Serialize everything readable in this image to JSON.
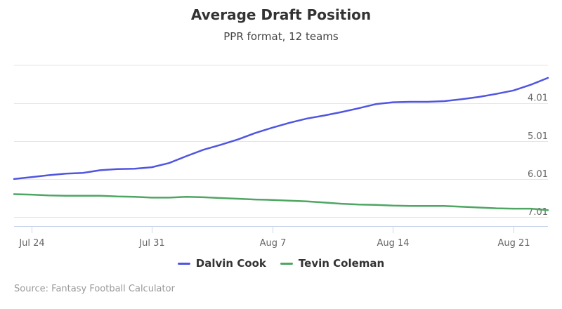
{
  "colors": {
    "dalvin_cook": "#5055e0",
    "tevin_coleman": "#4ea662",
    "grid": "#e6e6e6",
    "axis_text": "#666666"
  },
  "chart_data": {
    "type": "line",
    "title": "Average Draft Position",
    "subtitle": "PPR format, 12 teams",
    "x_ticks": [
      "Jul 24",
      "Jul 31",
      "Aug 7",
      "Aug 14",
      "Aug 21"
    ],
    "y_ticks": [
      "4.01",
      "5.01",
      "6.01",
      "7.01"
    ],
    "y_reversed": true,
    "grid": "horizontal",
    "legend_position": "bottom-center",
    "series": [
      {
        "name": "Dalvin Cook",
        "color_key": "dalvin_cook",
        "x": [
          "Jul 23",
          "Jul 24",
          "Jul 25",
          "Jul 26",
          "Jul 27",
          "Jul 28",
          "Jul 29",
          "Jul 30",
          "Jul 31",
          "Aug 1",
          "Aug 2",
          "Aug 3",
          "Aug 4",
          "Aug 5",
          "Aug 6",
          "Aug 7",
          "Aug 8",
          "Aug 9",
          "Aug 10",
          "Aug 11",
          "Aug 12",
          "Aug 13",
          "Aug 14",
          "Aug 15",
          "Aug 16",
          "Aug 17",
          "Aug 18",
          "Aug 19",
          "Aug 20",
          "Aug 21",
          "Aug 22",
          "Aug 23"
        ],
        "values": [
          6.01,
          5.96,
          5.91,
          5.87,
          5.85,
          5.78,
          5.75,
          5.74,
          5.7,
          5.59,
          5.41,
          5.24,
          5.11,
          4.97,
          4.8,
          4.66,
          4.53,
          4.42,
          4.34,
          4.25,
          4.15,
          4.04,
          3.99,
          3.98,
          3.98,
          3.96,
          3.91,
          3.85,
          3.77,
          3.68,
          3.53,
          3.35
        ]
      },
      {
        "name": "Tevin Coleman",
        "color_key": "tevin_coleman",
        "x": [
          "Jul 23",
          "Jul 24",
          "Jul 25",
          "Jul 26",
          "Jul 27",
          "Jul 28",
          "Jul 29",
          "Jul 30",
          "Jul 31",
          "Aug 1",
          "Aug 2",
          "Aug 3",
          "Aug 4",
          "Aug 5",
          "Aug 6",
          "Aug 7",
          "Aug 8",
          "Aug 9",
          "Aug 10",
          "Aug 11",
          "Aug 12",
          "Aug 13",
          "Aug 14",
          "Aug 15",
          "Aug 16",
          "Aug 17",
          "Aug 18",
          "Aug 19",
          "Aug 20",
          "Aug 21",
          "Aug 22",
          "Aug 23"
        ],
        "values": [
          6.41,
          6.42,
          6.44,
          6.45,
          6.45,
          6.45,
          6.47,
          6.48,
          6.5,
          6.5,
          6.48,
          6.49,
          6.51,
          6.53,
          6.55,
          6.56,
          6.58,
          6.6,
          6.63,
          6.66,
          6.68,
          6.69,
          6.71,
          6.72,
          6.72,
          6.72,
          6.74,
          6.76,
          6.78,
          6.79,
          6.79,
          6.83
        ]
      }
    ]
  },
  "credits": "Source: Fantasy Football Calculator"
}
